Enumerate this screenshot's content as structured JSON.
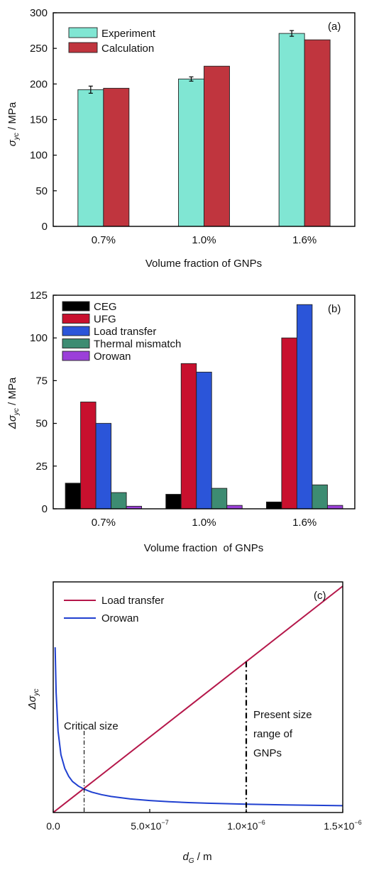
{
  "chart_data": [
    {
      "panel": "(a)",
      "type": "bar",
      "categories": [
        "0.7%",
        "1.0%",
        "1.6%"
      ],
      "series": [
        {
          "name": "Experiment",
          "values": [
            192,
            207,
            271
          ],
          "errors": [
            5,
            3,
            4
          ],
          "color": "#80E6D3"
        },
        {
          "name": "Calculation",
          "values": [
            194,
            225,
            262
          ],
          "color": "#C0353E"
        }
      ],
      "xlabel": "Volume fraction of GNPs",
      "ylabel_symbol": "σ",
      "ylabel_sub": "yc",
      "ylabel_unit": " / MPa",
      "ylim": [
        0,
        300
      ],
      "yticks": [
        0,
        50,
        100,
        150,
        200,
        250,
        300
      ],
      "legend_position": "top-left"
    },
    {
      "panel": "(b)",
      "type": "bar",
      "categories": [
        "0.7%",
        "1.0%",
        "1.6%"
      ],
      "series": [
        {
          "name": "CEG",
          "values": [
            15,
            8.5,
            4
          ],
          "color": "#000000"
        },
        {
          "name": "UFG",
          "values": [
            62.5,
            85,
            100
          ],
          "color": "#C8102E"
        },
        {
          "name": "Load transfer",
          "values": [
            50,
            80,
            119.5
          ],
          "color": "#2B55D9"
        },
        {
          "name": "Thermal mismatch",
          "values": [
            9.5,
            12,
            14
          ],
          "color": "#3D8C72"
        },
        {
          "name": "Orowan",
          "values": [
            1.5,
            2,
            2
          ],
          "color": "#9B3FD9"
        }
      ],
      "xlabel": "Volume fraction  of GNPs",
      "ylabel_symbol": "Δσ",
      "ylabel_sub": "yc",
      "ylabel_unit": " / MPa",
      "ylim": [
        0,
        125
      ],
      "yticks": [
        0,
        25,
        50,
        75,
        100,
        125
      ],
      "legend_position": "top-left"
    },
    {
      "panel": "(c)",
      "type": "line",
      "series": [
        {
          "name": "Load transfer",
          "color": "#B5174A",
          "x": [
            0,
            1.5e-06
          ],
          "y": [
            0,
            1.0
          ]
        },
        {
          "name": "Orowan",
          "color": "#2040D0",
          "x": [
            1e-08,
            1.5e-08,
            2.5e-08,
            4e-08,
            6e-08,
            8e-08,
            1e-07,
            1.3e-07,
            1.6e-07,
            2e-07,
            2.5e-07,
            3e-07,
            4e-07,
            5e-07,
            6e-07,
            7e-07,
            8e-07,
            1e-06,
            1.2e-06,
            1.5e-06
          ],
          "y": [
            0.73,
            0.53,
            0.36,
            0.255,
            0.195,
            0.16,
            0.137,
            0.117,
            0.103,
            0.09,
            0.079,
            0.071,
            0.06,
            0.053,
            0.048,
            0.044,
            0.041,
            0.037,
            0.034,
            0.03
          ]
        }
      ],
      "annotations": [
        {
          "text": "Critical size",
          "x": 1.6e-07,
          "lines": [
            "Critical size"
          ]
        },
        {
          "text": "Present size range of GNPs",
          "x": 1e-06,
          "lines": [
            "Present size",
            "range of",
            "GNPs"
          ]
        }
      ],
      "xlabel_symbol": "d",
      "xlabel_sub": "G",
      "xlabel_unit": " / m",
      "ylabel_symbol": "Δσ",
      "ylabel_sub": "yc",
      "xlim": [
        0,
        1.5e-06
      ],
      "xticks": [
        0,
        5e-07,
        1e-06,
        1.5e-06
      ],
      "xtick_labels": [
        {
          "base": "0.0",
          "exp": ""
        },
        {
          "base": "5.0×10",
          "exp": "−7"
        },
        {
          "base": "1.0×10",
          "exp": "−6"
        },
        {
          "base": "1.5×10",
          "exp": "−6"
        }
      ],
      "y_tick_labels_shown": false,
      "legend_position": "top-left"
    }
  ]
}
